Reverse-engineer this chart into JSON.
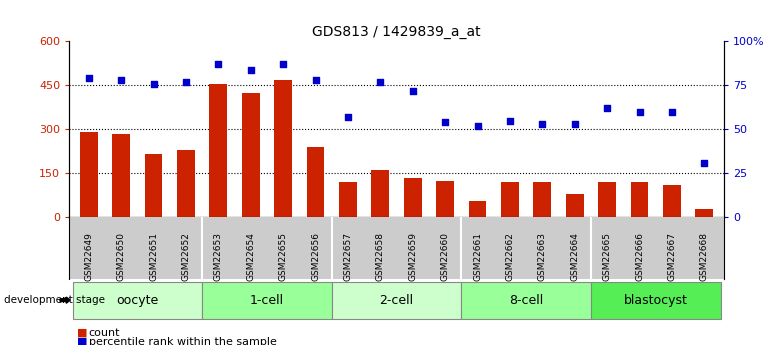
{
  "title": "GDS813 / 1429839_a_at",
  "samples": [
    "GSM22649",
    "GSM22650",
    "GSM22651",
    "GSM22652",
    "GSM22653",
    "GSM22654",
    "GSM22655",
    "GSM22656",
    "GSM22657",
    "GSM22658",
    "GSM22659",
    "GSM22660",
    "GSM22661",
    "GSM22662",
    "GSM22663",
    "GSM22664",
    "GSM22665",
    "GSM22666",
    "GSM22667",
    "GSM22668"
  ],
  "counts": [
    290,
    285,
    215,
    230,
    455,
    425,
    470,
    240,
    120,
    160,
    135,
    125,
    55,
    120,
    120,
    80,
    120,
    120,
    110,
    30
  ],
  "percentiles": [
    79,
    78,
    76,
    77,
    87,
    84,
    87,
    78,
    57,
    77,
    72,
    54,
    52,
    55,
    53,
    53,
    62,
    60,
    60,
    31
  ],
  "groups": [
    {
      "name": "oocyte",
      "indices": [
        0,
        1,
        2,
        3
      ],
      "color": "#ccffcc"
    },
    {
      "name": "1-cell",
      "indices": [
        4,
        5,
        6,
        7
      ],
      "color": "#99ff99"
    },
    {
      "name": "2-cell",
      "indices": [
        8,
        9,
        10,
        11
      ],
      "color": "#ccffcc"
    },
    {
      "name": "8-cell",
      "indices": [
        12,
        13,
        14,
        15
      ],
      "color": "#99ff99"
    },
    {
      "name": "blastocyst",
      "indices": [
        16,
        17,
        18,
        19
      ],
      "color": "#55ee55"
    }
  ],
  "bar_color": "#cc2200",
  "dot_color": "#0000cc",
  "left_ylim": [
    0,
    600
  ],
  "left_yticks": [
    0,
    150,
    300,
    450,
    600
  ],
  "right_ylim": [
    0,
    100
  ],
  "right_yticks": [
    0,
    25,
    50,
    75,
    100
  ],
  "right_yticklabels": [
    "0",
    "25",
    "50",
    "75",
    "100%"
  ],
  "bg_color": "#ffffff",
  "plot_bg": "#ffffff",
  "sample_bg": "#cccccc",
  "bar_width": 0.55,
  "tick_label_size": 6.5,
  "group_label_size": 9,
  "title_size": 10,
  "legend_count_color": "#cc2200",
  "legend_pct_color": "#0000cc",
  "hgrid_yticks": [
    150,
    300,
    450
  ]
}
